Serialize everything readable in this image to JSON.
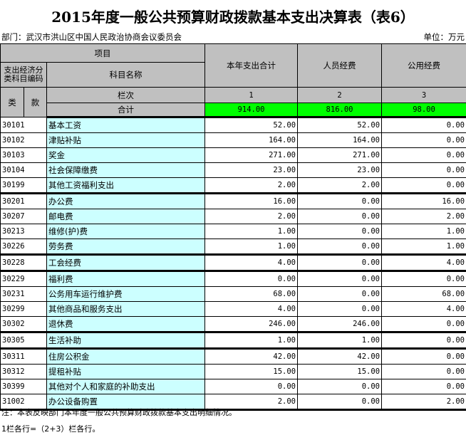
{
  "title": "2015年度一般公共预算财政拨款基本支出决算表（表6）",
  "department": "部门：武汉市洪山区中国人民政治协商会议委员会",
  "unit": "单位：万元",
  "header": {
    "item": "项目",
    "code_group": "支出经济分类科目编码",
    "name": "科目名称",
    "col1": "本年支出合计",
    "col2": "人员经费",
    "col3": "公用经费",
    "lei": "类",
    "kuan": "款",
    "column_index": "栏次",
    "idx1": "1",
    "idx2": "2",
    "idx3": "3",
    "total_label": "合计",
    "total1": "914.00",
    "total2": "816.00",
    "total3": "98.00"
  },
  "rows": [
    {
      "code": "30101",
      "name": "基本工资",
      "c1": "52.00",
      "c2": "52.00",
      "c3": "0.00"
    },
    {
      "code": "30102",
      "name": "津贴补贴",
      "c1": "164.00",
      "c2": "164.00",
      "c3": "0.00"
    },
    {
      "code": "30103",
      "name": "奖金",
      "c1": "271.00",
      "c2": "271.00",
      "c3": "0.00"
    },
    {
      "code": "30104",
      "name": "社会保障缴费",
      "c1": "23.00",
      "c2": "23.00",
      "c3": "0.00"
    },
    {
      "code": "30199",
      "name": "其他工资福利支出",
      "c1": "2.00",
      "c2": "2.00",
      "c3": "0.00"
    },
    {
      "code": "30201",
      "name": "办公费",
      "c1": "16.00",
      "c2": "0.00",
      "c3": "16.00"
    },
    {
      "code": "30207",
      "name": "邮电费",
      "c1": "2.00",
      "c2": "0.00",
      "c3": "2.00"
    },
    {
      "code": "30213",
      "name": "维修(护)费",
      "c1": "1.00",
      "c2": "0.00",
      "c3": "1.00"
    },
    {
      "code": "30226",
      "name": "劳务费",
      "c1": "1.00",
      "c2": "0.00",
      "c3": "1.00"
    },
    {
      "code": "30228",
      "name": "工会经费",
      "c1": "4.00",
      "c2": "0.00",
      "c3": "4.00"
    },
    {
      "code": "30229",
      "name": "福利费",
      "c1": "0.00",
      "c2": "0.00",
      "c3": "0.00"
    },
    {
      "code": "30231",
      "name": "公务用车运行维护费",
      "c1": "68.00",
      "c2": "0.00",
      "c3": "68.00"
    },
    {
      "code": "30299",
      "name": "其他商品和服务支出",
      "c1": "4.00",
      "c2": "0.00",
      "c3": "4.00"
    },
    {
      "code": "30302",
      "name": "退休费",
      "c1": "246.00",
      "c2": "246.00",
      "c3": "0.00"
    },
    {
      "code": "30305",
      "name": "生活补助",
      "c1": "1.00",
      "c2": "1.00",
      "c3": "0.00"
    },
    {
      "code": "30311",
      "name": "住房公积金",
      "c1": "42.00",
      "c2": "42.00",
      "c3": "0.00"
    },
    {
      "code": "30312",
      "name": "提租补贴",
      "c1": "15.00",
      "c2": "15.00",
      "c3": "0.00"
    },
    {
      "code": "30399",
      "name": "其他对个人和家庭的补助支出",
      "c1": "0.00",
      "c2": "0.00",
      "c3": "0.00"
    },
    {
      "code": "31002",
      "name": "办公设备购置",
      "c1": "2.00",
      "c2": "0.00",
      "c3": "2.00"
    }
  ],
  "notes": [
    "注：本表反映部门本年度一般公共预算财政拨款基本支出明细情况。",
    "1栏各行=（2+3）栏各行。"
  ]
}
